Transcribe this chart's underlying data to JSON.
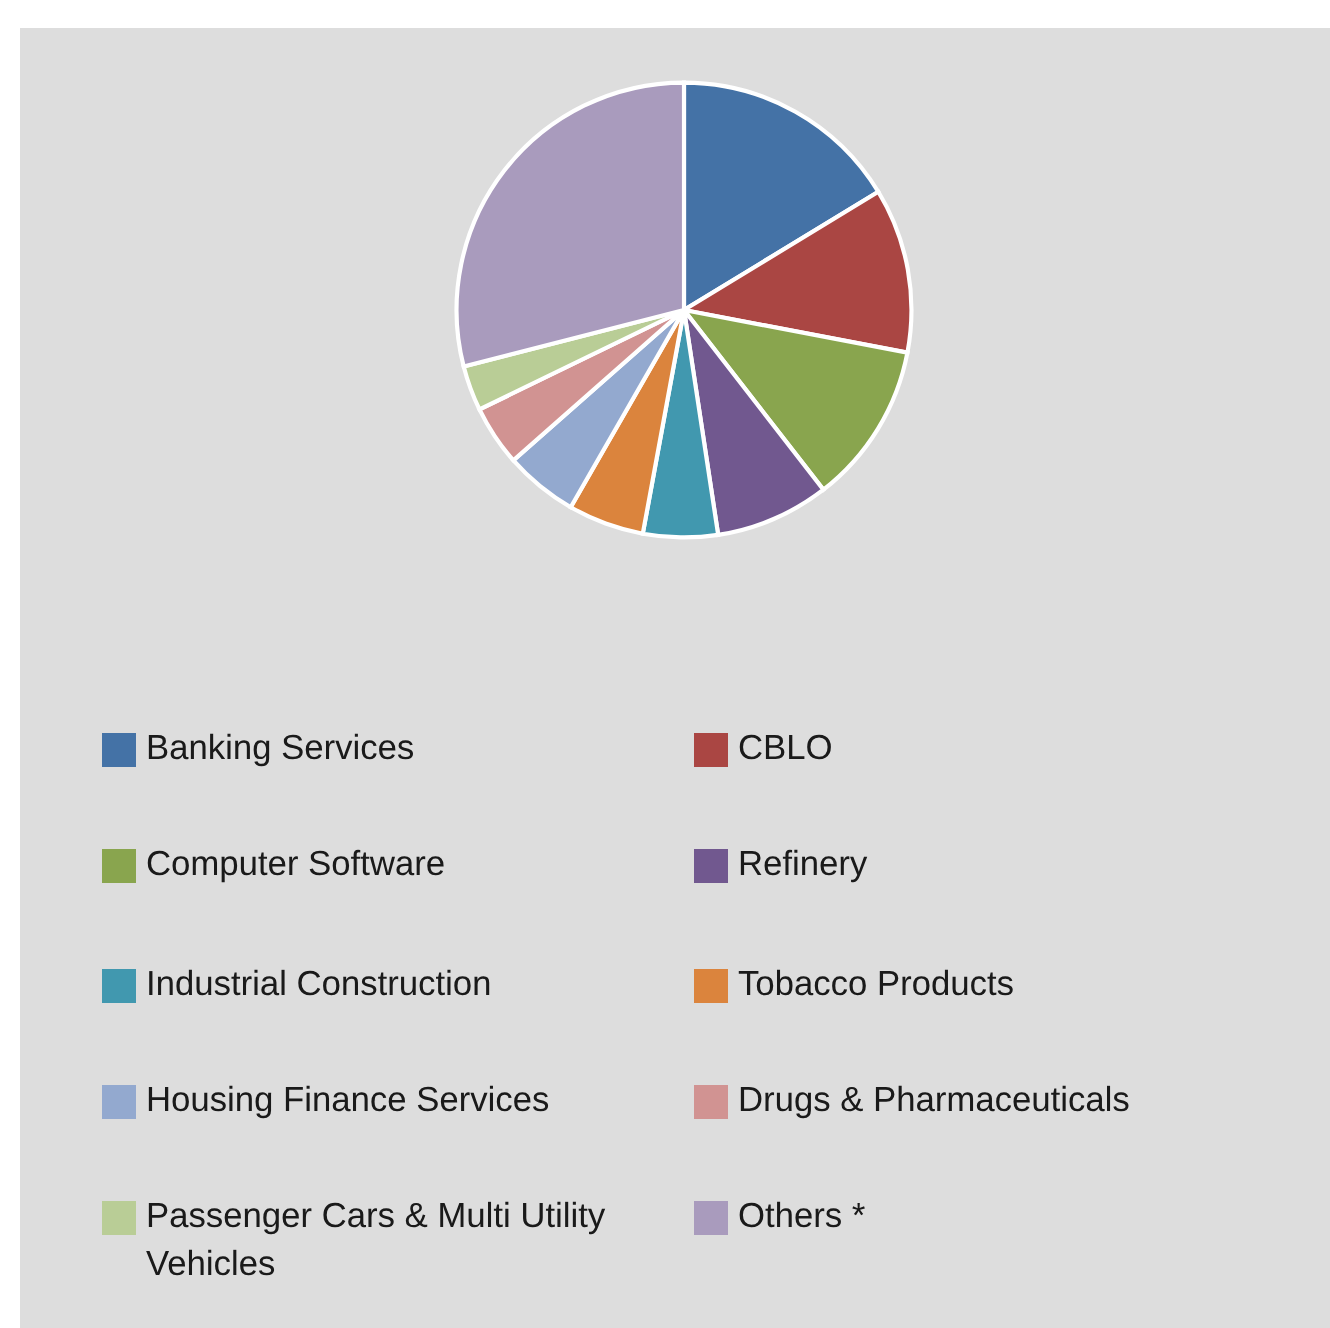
{
  "chart_data": {
    "type": "pie",
    "categories": [
      "Banking Services",
      "CBLO",
      "Computer Software",
      "Refinery",
      "Industrial Construction",
      "Tobacco Products",
      "Housing Finance Services",
      "Drugs & Pharmaceuticals",
      "Passenger Cars & Multi Utility Vehicles",
      "Others *"
    ],
    "values": [
      16.3,
      11.7,
      11.5,
      8.1,
      5.3,
      5.4,
      5.2,
      4.3,
      3.2,
      29.0
    ],
    "colors": [
      "#4472a6",
      "#aa4643",
      "#89a54e",
      "#71588f",
      "#4198af",
      "#db843d",
      "#93a9cf",
      "#d19392",
      "#b9cd96",
      "#a99bbd"
    ],
    "legend": "bottom"
  }
}
